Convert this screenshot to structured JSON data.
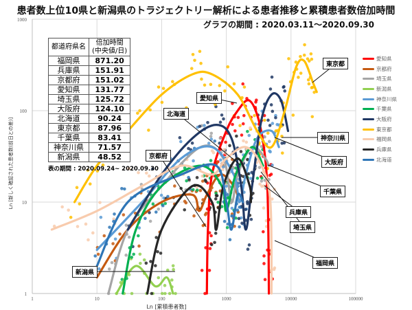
{
  "chart_data": {
    "type": "line",
    "title": "患者数上位10県と新潟県のトラジェクトリー解析による患者推移と累積患者数倍加時間",
    "subtitle": "グラフの期間 : 2020.03.11～2020.09.30",
    "xlabel": "Ln [累積患者数]",
    "ylabel": "Ln [新しく確認された患者数(前日との差)]",
    "xscale": "log",
    "yscale": "log",
    "xlim": [
      1,
      100000
    ],
    "ylim": [
      1,
      1000
    ],
    "xticks": [
      "1",
      "10",
      "100",
      "1000",
      "10000",
      "100000"
    ],
    "yticks": [
      "1",
      "10",
      "100",
      "1000"
    ],
    "grid": true,
    "legend_position": "right",
    "series": [
      {
        "name": "愛知県",
        "color": "#ff0000",
        "points": [
          [
            500,
            1
          ],
          [
            520,
            5
          ],
          [
            600,
            20
          ],
          [
            1000,
            60
          ],
          [
            1500,
            100
          ],
          [
            2200,
            130
          ],
          [
            3000,
            90
          ],
          [
            3800,
            40
          ],
          [
            4300,
            15
          ],
          [
            4500,
            3
          ],
          [
            4550,
            1
          ]
        ]
      },
      {
        "name": "京都府",
        "color": "#c55a11",
        "points": [
          [
            10,
            1.5
          ],
          [
            30,
            5
          ],
          [
            100,
            10
          ],
          [
            300,
            12
          ],
          [
            380,
            8
          ],
          [
            500,
            12
          ],
          [
            800,
            20
          ],
          [
            1300,
            15
          ],
          [
            1600,
            10
          ]
        ]
      },
      {
        "name": "埼玉県",
        "color": "#a5a5a5",
        "points": [
          [
            15,
            1
          ],
          [
            30,
            5
          ],
          [
            100,
            15
          ],
          [
            400,
            40
          ],
          [
            900,
            30
          ],
          [
            1200,
            10
          ],
          [
            1500,
            20
          ],
          [
            2500,
            40
          ],
          [
            4000,
            30
          ],
          [
            4500,
            25
          ]
        ]
      },
      {
        "name": "新潟県",
        "color": "#92d050",
        "points": [
          [
            20,
            1
          ],
          [
            40,
            2
          ],
          [
            80,
            1.2
          ],
          [
            120,
            1.5
          ],
          [
            150,
            1
          ]
        ]
      },
      {
        "name": "神奈川県",
        "color": "#5b9bd5",
        "points": [
          [
            10,
            3
          ],
          [
            50,
            10
          ],
          [
            200,
            30
          ],
          [
            600,
            40
          ],
          [
            1300,
            20
          ],
          [
            1600,
            10
          ],
          [
            2000,
            20
          ],
          [
            3000,
            50
          ],
          [
            5000,
            60
          ],
          [
            6500,
            40
          ]
        ]
      },
      {
        "name": "千葉県",
        "color": "#00b050",
        "points": [
          [
            25,
            1
          ],
          [
            40,
            5
          ],
          [
            100,
            15
          ],
          [
            400,
            25
          ],
          [
            850,
            15
          ],
          [
            1000,
            8
          ],
          [
            1400,
            20
          ],
          [
            2500,
            40
          ],
          [
            3700,
            25
          ]
        ]
      },
      {
        "name": "大阪府",
        "color": "#203864",
        "points": [
          [
            30,
            5
          ],
          [
            100,
            20
          ],
          [
            300,
            50
          ],
          [
            700,
            70
          ],
          [
            1200,
            50
          ],
          [
            1700,
            15
          ],
          [
            2000,
            5
          ],
          [
            2500,
            15
          ],
          [
            3500,
            80
          ],
          [
            5000,
            150
          ],
          [
            7000,
            130
          ],
          [
            9000,
            60
          ]
        ]
      },
      {
        "name": "東京都",
        "color": "#ffc000",
        "points": [
          [
            4.5,
            10
          ],
          [
            10,
            25
          ],
          [
            30,
            60
          ],
          [
            100,
            150
          ],
          [
            300,
            250
          ],
          [
            600,
            250
          ],
          [
            1500,
            150
          ],
          [
            3000,
            60
          ],
          [
            5000,
            40
          ],
          [
            8000,
            100
          ],
          [
            12000,
            300
          ],
          [
            16000,
            350
          ],
          [
            22000,
            200
          ],
          [
            25000,
            160
          ]
        ]
      },
      {
        "name": "福岡県",
        "color": "#f8cbad",
        "points": [
          [
            2,
            5
          ],
          [
            10,
            8
          ],
          [
            50,
            15
          ],
          [
            200,
            25
          ],
          [
            600,
            20
          ],
          [
            1000,
            30
          ],
          [
            2000,
            40
          ],
          [
            3500,
            25
          ],
          [
            4800,
            10
          ],
          [
            5000,
            1
          ]
        ]
      },
      {
        "name": "兵庫県",
        "color": "#262626",
        "points": [
          [
            60,
            1
          ],
          [
            100,
            5
          ],
          [
            300,
            15
          ],
          [
            600,
            10
          ],
          [
            700,
            5
          ],
          [
            900,
            15
          ],
          [
            1500,
            30
          ],
          [
            2300,
            15
          ],
          [
            2400,
            10
          ]
        ]
      },
      {
        "name": "北海道",
        "color": "#2e75b6",
        "points": [
          [
            10,
            2
          ],
          [
            30,
            10
          ],
          [
            200,
            20
          ],
          [
            700,
            25
          ],
          [
            1000,
            10
          ],
          [
            1200,
            5
          ],
          [
            1500,
            12
          ],
          [
            1800,
            10
          ]
        ]
      }
    ],
    "table": {
      "headers": [
        "都道府県名",
        "倍加時間\n(中央値/日)"
      ],
      "rows": [
        [
          "福岡県",
          "871.20"
        ],
        [
          "兵庫県",
          "151.91"
        ],
        [
          "京都府",
          "151.02"
        ],
        [
          "愛知県",
          "131.77"
        ],
        [
          "埼玉県",
          "125.72"
        ],
        [
          "大阪府",
          "124.10"
        ],
        [
          "北海道",
          "90.24"
        ],
        [
          "東京都",
          "87.96"
        ],
        [
          "千葉県",
          "83.41"
        ],
        [
          "神奈川県",
          "71.57"
        ],
        [
          "新潟県",
          "48.52"
        ]
      ],
      "note": "表の期間 : 2020.09.24~ 2020.09.30"
    },
    "callouts": [
      {
        "label": "東京都",
        "series": "東京都"
      },
      {
        "label": "愛知県",
        "series": "愛知県"
      },
      {
        "label": "北海道",
        "series": "北海道"
      },
      {
        "label": "神奈川県",
        "series": "神奈川県"
      },
      {
        "label": "大阪府",
        "series": "大阪府"
      },
      {
        "label": "京都府",
        "series": "京都府"
      },
      {
        "label": "千葉県",
        "series": "千葉県"
      },
      {
        "label": "兵庫県",
        "series": "兵庫県"
      },
      {
        "label": "埼玉県",
        "series": "埼玉県"
      },
      {
        "label": "福岡県",
        "series": "福岡県"
      },
      {
        "label": "新潟県",
        "series": "新潟県"
      }
    ]
  }
}
